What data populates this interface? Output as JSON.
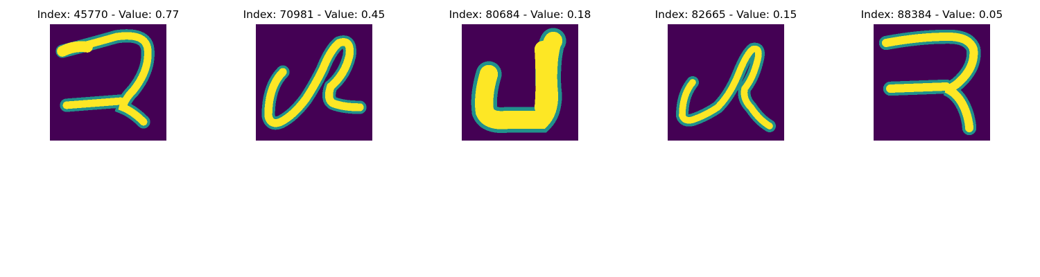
{
  "colors": {
    "background": "#440154",
    "foreground": "#fde725",
    "edge_mid": "#35b779",
    "edge_low": "#21918c"
  },
  "panels": [
    {
      "index_label": "Index: 45770",
      "value_label": "Value: 0.77",
      "title": "Index: 45770 - Value: 0.77"
    },
    {
      "index_label": "Index: 70981",
      "value_label": "Value: 0.45",
      "title": "Index: 70981 - Value: 0.45"
    },
    {
      "index_label": "Index: 80684",
      "value_label": "Value: 0.18",
      "title": "Index: 80684 - Value: 0.18"
    },
    {
      "index_label": "Index: 82665",
      "value_label": "Value: 0.15",
      "title": "Index: 82665 - Value: 0.15"
    },
    {
      "index_label": "Index: 88384",
      "value_label": "Value: 0.05",
      "title": "Index: 88384 - Value: 0.05"
    }
  ]
}
